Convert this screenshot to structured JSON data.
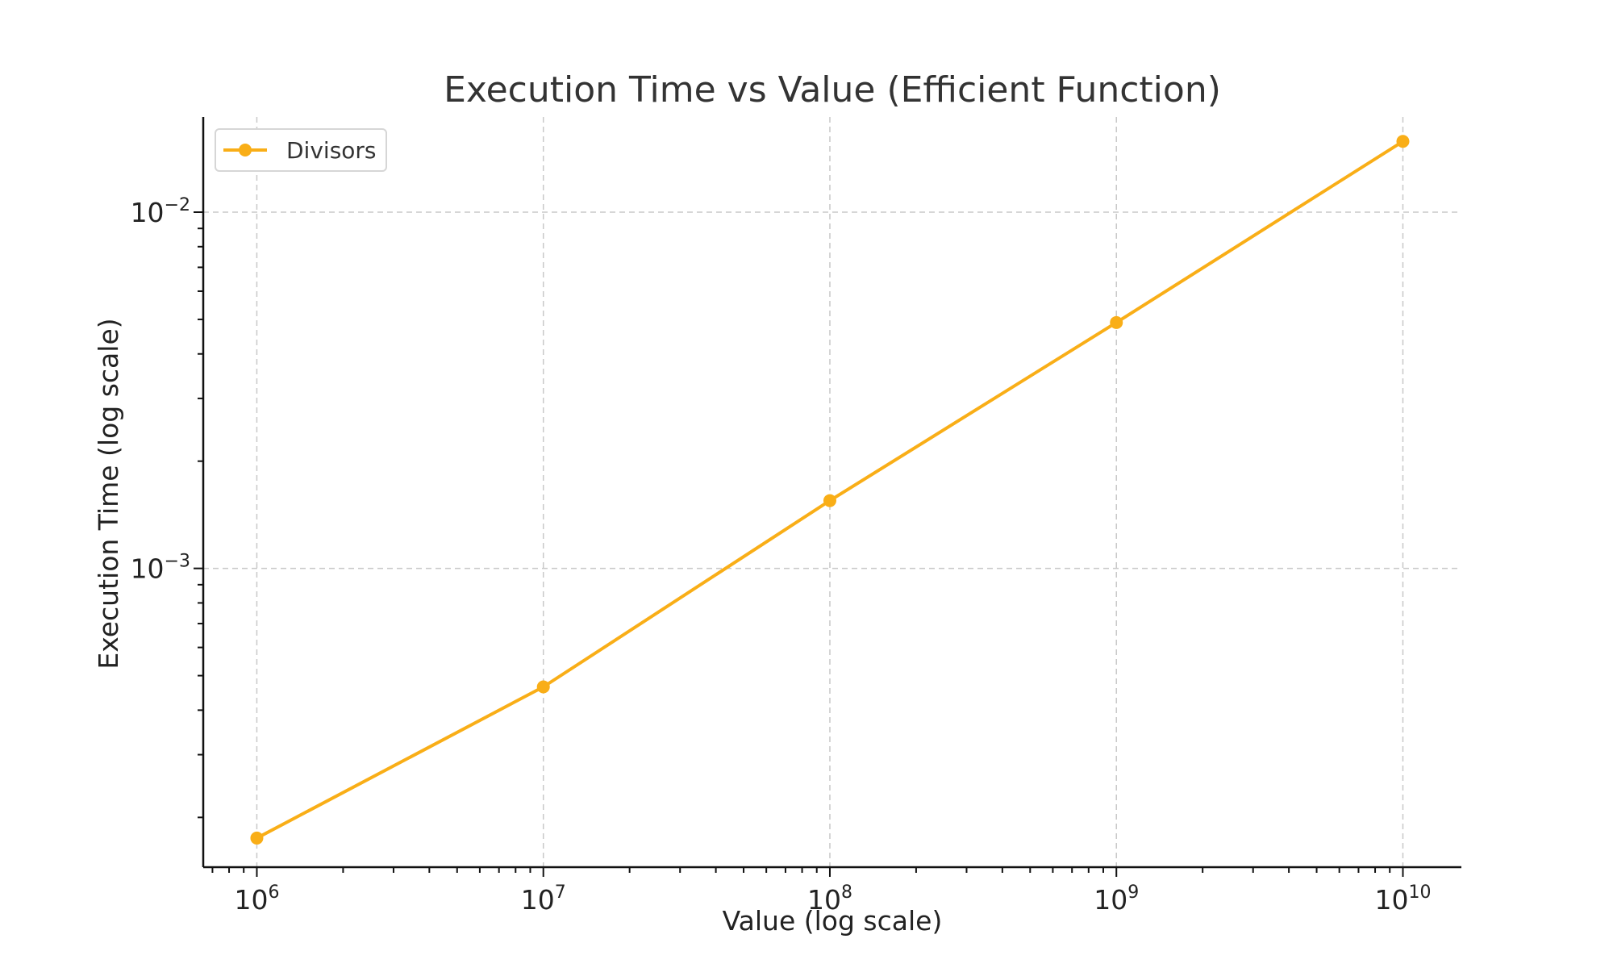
{
  "chart_data": {
    "type": "line",
    "title": "Execution Time vs Value (Efficient Function)",
    "xlabel": "Value (log scale)",
    "ylabel": "Execution Time (log scale)",
    "x_scale": "log",
    "y_scale": "log",
    "xlim": [
      650000,
      16000000000
    ],
    "ylim": [
      0.000145,
      0.0185
    ],
    "x_ticks": [
      {
        "value": 1000000,
        "base": "10",
        "exp": "6"
      },
      {
        "value": 10000000,
        "base": "10",
        "exp": "7"
      },
      {
        "value": 100000000,
        "base": "10",
        "exp": "8"
      },
      {
        "value": 1000000000,
        "base": "10",
        "exp": "9"
      },
      {
        "value": 10000000000,
        "base": "10",
        "exp": "10"
      }
    ],
    "y_ticks": [
      {
        "value": 0.001,
        "base": "10",
        "exp": "−3"
      },
      {
        "value": 0.01,
        "base": "10",
        "exp": "−2"
      }
    ],
    "grid": true,
    "legend_position": "top-left",
    "series": [
      {
        "name": "Divisors",
        "color": "#f9ae17",
        "marker": "circle",
        "x": [
          1000000,
          10000000,
          100000000,
          1000000000,
          10000000000
        ],
        "y": [
          0.000175,
          0.000465,
          0.00155,
          0.0049,
          0.0158
        ]
      }
    ]
  }
}
